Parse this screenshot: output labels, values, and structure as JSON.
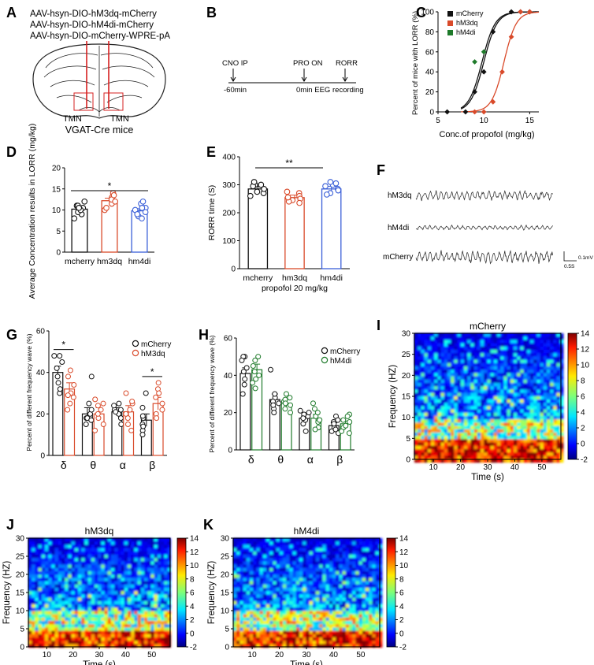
{
  "panel_letters": [
    "A",
    "B",
    "C",
    "D",
    "E",
    "F",
    "G",
    "H",
    "I",
    "J",
    "K"
  ],
  "panel_a": {
    "constructs": [
      "AAV-hsyn-DIO-hM3dq-mCherry",
      "AAV-hsyn-DIO-hM4di-mCherry",
      "AAV-hsyn-DIO-mCherry-WPRE-pA"
    ],
    "tmn_left": "TMN",
    "tmn_right": "TMN",
    "caption": "VGAT-Cre mice"
  },
  "panel_b": {
    "events": [
      {
        "top": "CNO IP",
        "bottom": "-60min"
      },
      {
        "top": "PRO ON",
        "bottom": "0min EEG"
      },
      {
        "top": "RORR",
        "bottom": "recording"
      }
    ]
  },
  "panel_f": {
    "traces": [
      "hM3dq",
      "hM4di",
      "mCherry"
    ],
    "scale_v": "0.1mV",
    "scale_t": "0.5S"
  },
  "spectrograms": [
    {
      "title": "mCherry",
      "xlabel": "Time (s)",
      "ylabel": "Frequency (HZ)",
      "yticks": [
        "0",
        "5",
        "10",
        "15",
        "20",
        "25",
        "30"
      ],
      "xticks": [
        "10",
        "20",
        "30",
        "40",
        "50"
      ],
      "cticks": [
        "14",
        "12",
        "10",
        "8",
        "6",
        "4",
        "2",
        "0",
        "-2"
      ],
      "clim": [
        -2,
        14
      ]
    },
    {
      "title": "hM3dq",
      "xlabel": "Time (s)",
      "ylabel": "Frequency (HZ)",
      "yticks": [
        "0",
        "5",
        "10",
        "15",
        "20",
        "25",
        "30"
      ],
      "xticks": [
        "10",
        "20",
        "30",
        "40",
        "50"
      ],
      "cticks": [
        "14",
        "12",
        "10",
        "8",
        "6",
        "4",
        "2",
        "0",
        "-2"
      ],
      "clim": [
        -2,
        14
      ]
    },
    {
      "title": "hM4di",
      "xlabel": "Time (s)",
      "ylabel": "Frequency (HZ)",
      "yticks": [
        "0",
        "5",
        "10",
        "15",
        "20",
        "25",
        "30"
      ],
      "xticks": [
        "10",
        "20",
        "30",
        "40",
        "50"
      ],
      "cticks": [
        "14",
        "12",
        "10",
        "8",
        "6",
        "4",
        "2",
        "0",
        "-2"
      ],
      "clim": [
        -2,
        14
      ]
    }
  ],
  "chart_data": [
    {
      "panel": "C",
      "type": "scatter",
      "xlabel": "Conc.of propofol (mg/kg)",
      "ylabel": "Percent of mice with LORR (%)",
      "xlim": [
        5,
        16
      ],
      "ylim": [
        0,
        100
      ],
      "xticks": [
        "5",
        "10",
        "15"
      ],
      "yticks": [
        "0",
        "20",
        "40",
        "60",
        "80",
        "100"
      ],
      "series": [
        {
          "name": "mCherry",
          "color": "#111111",
          "x": [
            6,
            8,
            9,
            10,
            11,
            13,
            14,
            15
          ],
          "y": [
            0,
            0,
            20,
            40,
            80,
            100,
            100,
            100
          ]
        },
        {
          "name": "hM3dq",
          "color": "#d94a2a",
          "x": [
            9,
            10,
            11,
            12,
            13,
            14,
            15
          ],
          "y": [
            0,
            0,
            10,
            40,
            75,
            100,
            100
          ]
        },
        {
          "name": "hM4di",
          "color": "#1e7a2a",
          "x": [
            9,
            10
          ],
          "y": [
            50,
            60
          ]
        }
      ],
      "curves": [
        {
          "name": "mCherry",
          "ec50": 10.0,
          "slope": 1.4,
          "color": "#111111"
        },
        {
          "name": "hM4di",
          "ec50": 9.8,
          "slope": 1.4,
          "color": "#111111"
        },
        {
          "name": "hM3dq",
          "ec50": 12.2,
          "slope": 1.5,
          "color": "#d94a2a"
        }
      ]
    },
    {
      "panel": "D",
      "type": "bar",
      "categories": [
        "mcherry",
        "hm3dq",
        "hm4di"
      ],
      "values": [
        10.2,
        12.2,
        9.8
      ],
      "errors": [
        0.5,
        0.6,
        0.5
      ],
      "colors": [
        "#111111",
        "#d94a2a",
        "#3a5fd8"
      ],
      "points": [
        [
          11.0,
          8.0,
          10.5,
          9.0,
          11.0,
          9.5,
          12.0,
          10.0,
          10.5
        ],
        [
          14.0,
          12.0,
          13.0,
          10.0,
          11.5,
          12.5,
          13.5,
          10.5,
          12.0
        ],
        [
          11.5,
          8.5,
          10.0,
          9.0,
          12.0,
          10.5,
          8.0,
          9.5,
          10.5
        ]
      ],
      "ylabel": "Average Concentration results in LORR (mg/kg)",
      "ylim": [
        0,
        20
      ],
      "yticks": [
        "0",
        "5",
        "10",
        "15",
        "20"
      ],
      "significance": "*"
    },
    {
      "panel": "E",
      "type": "bar",
      "categories": [
        "mcherry",
        "hm3dq",
        "hm4di"
      ],
      "values": [
        285,
        254,
        285
      ],
      "errors": [
        9,
        9,
        9
      ],
      "colors": [
        "#111111",
        "#d94a2a",
        "#3a5fd8"
      ],
      "points": [
        [
          300,
          270,
          295,
          310,
          260,
          285,
          300,
          275
        ],
        [
          270,
          245,
          260,
          240,
          250,
          275,
          235,
          255
        ],
        [
          295,
          270,
          300,
          310,
          265,
          285,
          305,
          280
        ]
      ],
      "ylabel": "RORR time (S)",
      "xlabel": "propofol 20 mg/kg",
      "ylim": [
        0,
        400
      ],
      "yticks": [
        "0",
        "100",
        "200",
        "300",
        "400"
      ],
      "significance": "**"
    },
    {
      "panel": "G",
      "type": "bar",
      "categories": [
        "δ",
        "θ",
        "α",
        "β"
      ],
      "ylabel": "Percent of different frequency wave (%)",
      "ylim": [
        0,
        60
      ],
      "yticks": [
        "0",
        "20",
        "40",
        "60"
      ],
      "significance": [
        "*",
        "",
        "",
        "*"
      ],
      "series": [
        {
          "name": "mCherry",
          "color": "#111111",
          "values": [
            40,
            20,
            21,
            17
          ],
          "errors": [
            3,
            3,
            2,
            3
          ],
          "points": [
            [
              42,
              35,
              48,
              38,
              45,
              30,
              32,
              48
            ],
            [
              38,
              18,
              20,
              15,
              22,
              25,
              18,
              17
            ],
            [
              20,
              22,
              18,
              25,
              22,
              15,
              21,
              24
            ],
            [
              30,
              18,
              15,
              12,
              10,
              19,
              14,
              23
            ]
          ]
        },
        {
          "name": "hM3dq",
          "color": "#d94a2a",
          "values": [
            32,
            20,
            21,
            25
          ],
          "errors": [
            3,
            3,
            3,
            3
          ],
          "points": [
            [
              34,
              25,
              22,
              30,
              38,
              41,
              29,
              28
            ],
            [
              25,
              15,
              22,
              18,
              24,
              12,
              20,
              27
            ],
            [
              30,
              25,
              18,
              15,
              22,
              12,
              26,
              20
            ],
            [
              32,
              20,
              28,
              35,
              22,
              18,
              25,
              30
            ]
          ]
        }
      ]
    },
    {
      "panel": "H",
      "type": "bar",
      "categories": [
        "δ",
        "θ",
        "α",
        "β"
      ],
      "ylabel": "Percent of different frequency wave (%)",
      "ylim": [
        0,
        60
      ],
      "yticks": [
        "0",
        "20",
        "40",
        "60"
      ],
      "series": [
        {
          "name": "mCherry",
          "color": "#111111",
          "values": [
            41,
            27,
            17,
            13
          ],
          "errors": [
            3,
            3,
            1.5,
            1.5
          ],
          "points": [
            [
              50,
              38,
              35,
              42,
              50,
              44,
              30,
              48
            ],
            [
              43,
              22,
              25,
              28,
              30,
              20,
              26,
              24
            ],
            [
              18,
              14,
              20,
              16,
              19,
              10,
              21,
              17
            ],
            [
              15,
              12,
              10,
              18,
              11,
              14,
              9,
              16
            ]
          ]
        },
        {
          "name": "hM4di",
          "color": "#1e7a2a",
          "values": [
            43,
            25,
            17,
            14
          ],
          "errors": [
            3,
            2.5,
            2,
            1.5
          ],
          "points": [
            [
              50,
              45,
              40,
              38,
              33,
              48,
              42,
              36
            ],
            [
              22,
              28,
              26,
              20,
              30,
              24,
              27,
              25
            ],
            [
              25,
              18,
              15,
              22,
              12,
              20,
              16,
              11
            ],
            [
              19,
              16,
              12,
              10,
              18,
              13,
              9,
              15
            ]
          ]
        }
      ]
    }
  ]
}
